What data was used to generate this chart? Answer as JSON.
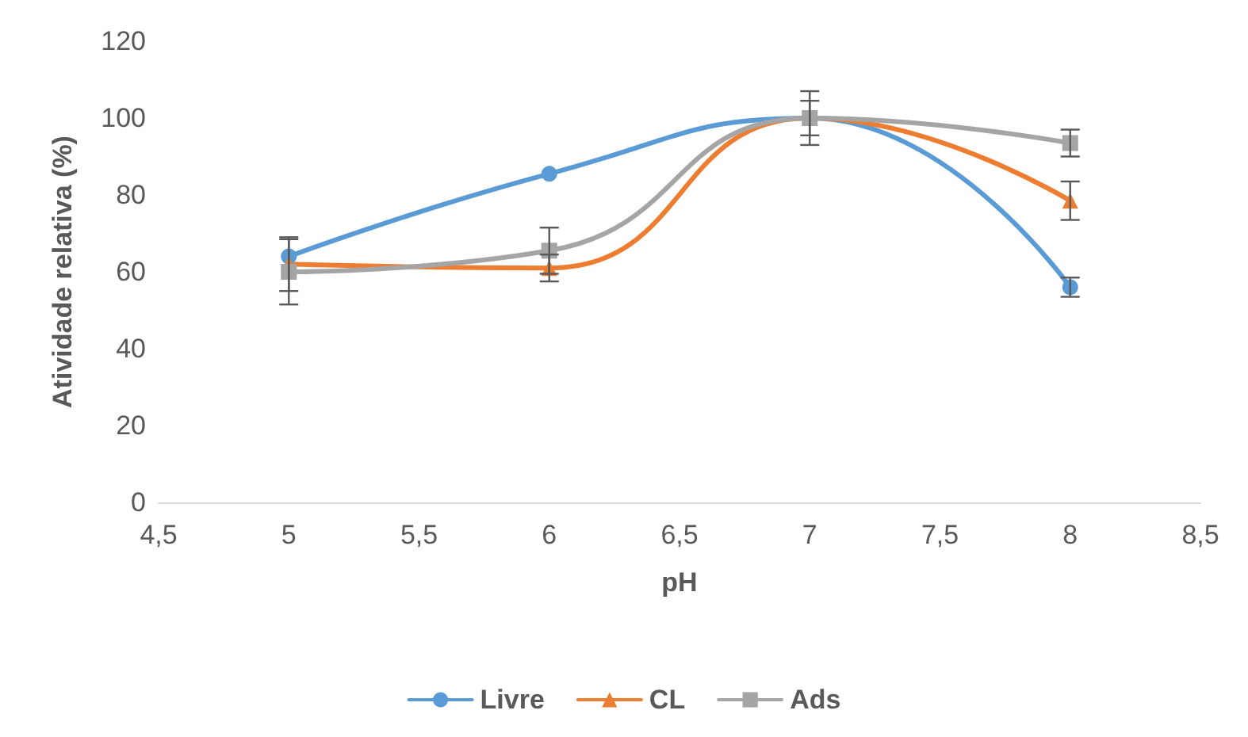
{
  "chart_data": {
    "type": "line",
    "xlabel": "pH",
    "ylabel": "Atividade relativa (%)",
    "x": [
      5,
      6,
      7,
      8
    ],
    "xlim": [
      4.5,
      8.5
    ],
    "xticks": [
      {
        "value": 4.5,
        "label": "4,5"
      },
      5,
      {
        "value": 5.5,
        "label": "5,5"
      },
      6,
      {
        "value": 6.5,
        "label": "6,5"
      },
      7,
      {
        "value": 7.5,
        "label": "7,5"
      },
      8,
      {
        "value": 8.5,
        "label": "8,5"
      }
    ],
    "ylim": [
      0,
      120
    ],
    "yticks": [
      0,
      20,
      40,
      60,
      80,
      100,
      120
    ],
    "grid": false,
    "legend": "bottom",
    "series": [
      {
        "name": "Livre",
        "color": "#5b9bd5",
        "marker": "circle",
        "values": [
          64,
          85.5,
          100,
          56
        ],
        "errors": [
          null,
          null,
          null,
          2.5
        ]
      },
      {
        "name": "CL",
        "color": "#ed7d31",
        "marker": "triangle",
        "values": [
          62,
          61,
          100,
          78.5
        ],
        "errors": [
          7,
          3.5,
          4.5,
          5
        ]
      },
      {
        "name": "Ads",
        "color": "#a5a5a5",
        "marker": "square",
        "values": [
          60,
          65.5,
          100,
          93.5
        ],
        "errors": [
          8.5,
          6,
          7,
          3.5
        ]
      }
    ]
  }
}
